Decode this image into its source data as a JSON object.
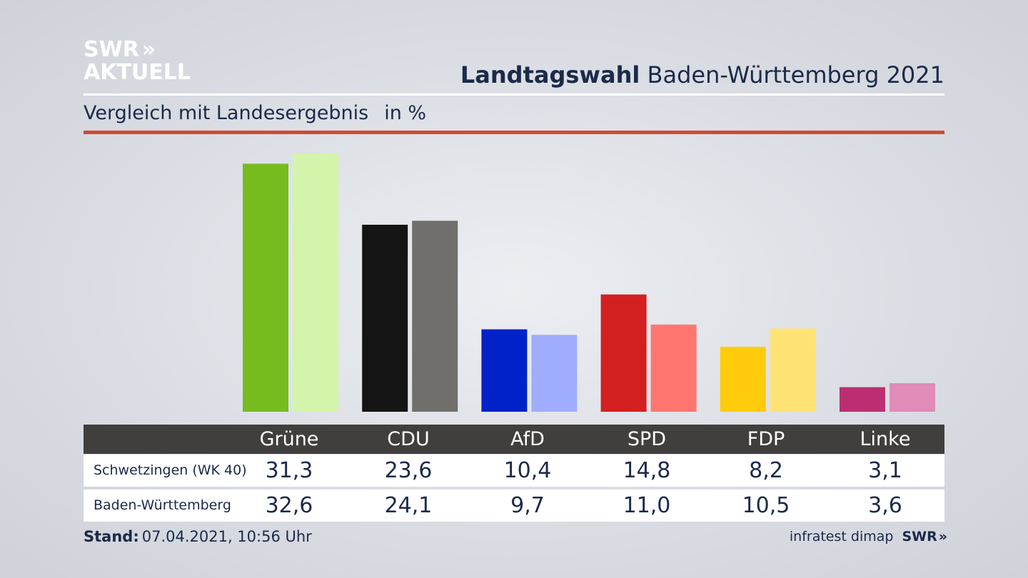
{
  "header": {
    "logo_line1": "SWR",
    "logo_chevrons": "»",
    "logo_line2": "AKTUELL",
    "title_bold": "Landtagswahl",
    "title_rest": "Baden-Württemberg 2021",
    "subtitle": "Vergleich mit Landesergebnis",
    "unit": "in %"
  },
  "chart_data": {
    "type": "bar",
    "title": "Landtagswahl Baden-Württemberg 2021",
    "subtitle": "Vergleich mit Landesergebnis in %",
    "categories": [
      "Grüne",
      "CDU",
      "AfD",
      "SPD",
      "FDP",
      "Linke"
    ],
    "series": [
      {
        "name": "Schwetzingen (WK 40)",
        "values": [
          31.3,
          23.6,
          10.4,
          14.8,
          8.2,
          3.1
        ],
        "colors": [
          "#77bc1f",
          "#141414",
          "#0022c8",
          "#d41f20",
          "#ffcb0a",
          "#bb2f72"
        ]
      },
      {
        "name": "Baden-Württemberg",
        "values": [
          32.6,
          24.1,
          9.7,
          11.0,
          10.5,
          3.6
        ],
        "colors": [
          "#d4f4ab",
          "#706f6c",
          "#9fadfc",
          "#ff7670",
          "#fee274",
          "#e08bb8"
        ]
      }
    ],
    "ylim": [
      0,
      32.6
    ],
    "grid": false,
    "legend": "none"
  },
  "table": {
    "header_labels": [
      "Grüne",
      "CDU",
      "AfD",
      "SPD",
      "FDP",
      "Linke"
    ],
    "rows": [
      {
        "label": "Schwetzingen (WK 40)",
        "values": [
          "31,3",
          "23,6",
          "10,4",
          "14,8",
          "8,2",
          "3,1"
        ]
      },
      {
        "label": "Baden-Württemberg",
        "values": [
          "32,6",
          "24,1",
          "9,7",
          "11,0",
          "10,5",
          "3,6"
        ]
      }
    ]
  },
  "footer": {
    "stand_label": "Stand:",
    "stand_value": "07.04.2021, 10:56 Uhr",
    "source": "infratest dimap",
    "source_logo": "SWR",
    "source_chevrons": "»"
  }
}
